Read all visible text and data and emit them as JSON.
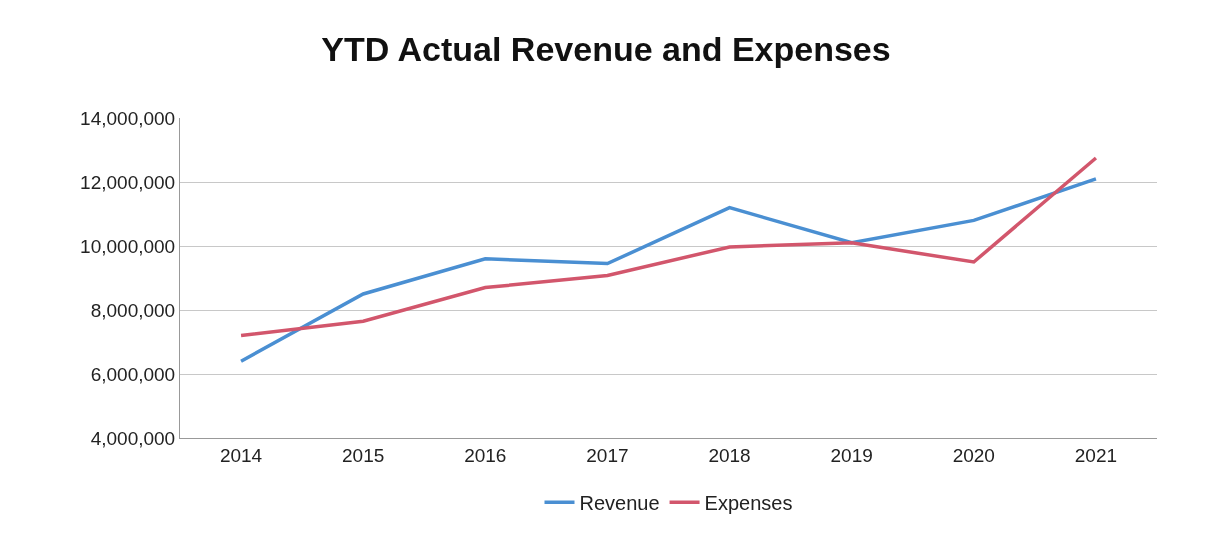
{
  "chart_data": {
    "type": "line",
    "title": "YTD Actual Revenue and Expenses",
    "categories": [
      "2014",
      "2015",
      "2016",
      "2017",
      "2018",
      "2019",
      "2020",
      "2021"
    ],
    "series": [
      {
        "name": "Revenue",
        "color": "#4a8fd2",
        "values": [
          6400000,
          8500000,
          9600000,
          9450000,
          11200000,
          10100000,
          10800000,
          12100000
        ]
      },
      {
        "name": "Expenses",
        "color": "#d2566c",
        "values": [
          7200000,
          7650000,
          8700000,
          9080000,
          9970000,
          10100000,
          9500000,
          12750000
        ]
      }
    ],
    "ylim": [
      4000000,
      14000000
    ],
    "yticks": [
      {
        "value": 4000000,
        "label": "4,000,000"
      },
      {
        "value": 6000000,
        "label": "6,000,000"
      },
      {
        "value": 8000000,
        "label": "8,000,000"
      },
      {
        "value": 10000000,
        "label": "10,000,000"
      },
      {
        "value": 12000000,
        "label": "12,000,000"
      },
      {
        "value": 14000000,
        "label": "14,000,000"
      }
    ],
    "grid": "y",
    "legend": "bottom",
    "marker": "none",
    "line_style": "solid"
  }
}
